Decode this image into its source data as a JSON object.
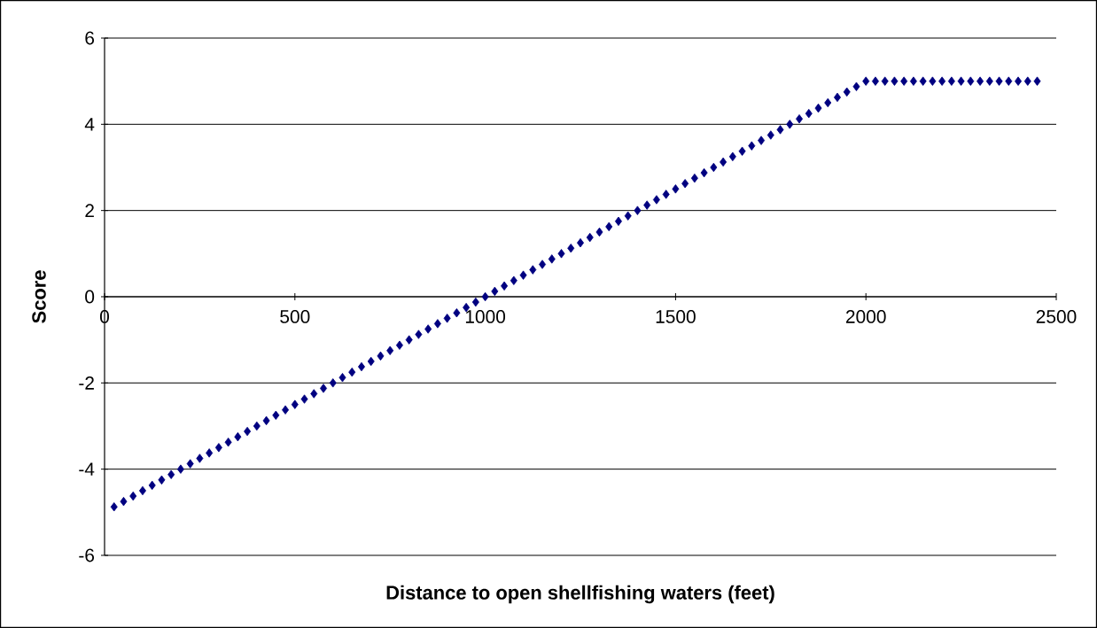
{
  "chart_data": {
    "type": "scatter",
    "xlabel": "Distance to open shellfishing waters (feet)",
    "ylabel": "Score",
    "x": [
      25,
      50,
      75,
      100,
      125,
      150,
      175,
      200,
      225,
      250,
      275,
      300,
      325,
      350,
      375,
      400,
      425,
      450,
      475,
      500,
      525,
      550,
      575,
      600,
      625,
      650,
      675,
      700,
      725,
      750,
      775,
      800,
      825,
      850,
      875,
      900,
      925,
      950,
      975,
      1000,
      1025,
      1050,
      1075,
      1100,
      1125,
      1150,
      1175,
      1200,
      1225,
      1250,
      1275,
      1300,
      1325,
      1350,
      1375,
      1400,
      1425,
      1450,
      1475,
      1500,
      1525,
      1550,
      1575,
      1600,
      1625,
      1650,
      1675,
      1700,
      1725,
      1750,
      1775,
      1800,
      1825,
      1850,
      1875,
      1900,
      1925,
      1950,
      1975,
      2000,
      2025,
      2050,
      2075,
      2100,
      2125,
      2150,
      2175,
      2200,
      2225,
      2250,
      2275,
      2300,
      2325,
      2350,
      2375,
      2400,
      2425,
      2450
    ],
    "values": [
      -4.875,
      -4.75,
      -4.625,
      -4.5,
      -4.375,
      -4.25,
      -4.125,
      -4,
      -3.875,
      -3.75,
      -3.625,
      -3.5,
      -3.375,
      -3.25,
      -3.125,
      -3,
      -2.875,
      -2.75,
      -2.625,
      -2.5,
      -2.375,
      -2.25,
      -2.125,
      -2,
      -1.875,
      -1.75,
      -1.625,
      -1.5,
      -1.375,
      -1.25,
      -1.125,
      -1,
      -0.875,
      -0.75,
      -0.625,
      -0.5,
      -0.375,
      -0.25,
      -0.125,
      0,
      0.125,
      0.25,
      0.375,
      0.5,
      0.625,
      0.75,
      0.875,
      1,
      1.125,
      1.25,
      1.375,
      1.5,
      1.625,
      1.75,
      1.875,
      2,
      2.125,
      2.25,
      2.375,
      2.5,
      2.625,
      2.75,
      2.875,
      3,
      3.125,
      3.25,
      3.375,
      3.5,
      3.625,
      3.75,
      3.875,
      4,
      4.125,
      4.25,
      4.375,
      4.5,
      4.625,
      4.75,
      4.875,
      5,
      5,
      5,
      5,
      5,
      5,
      5,
      5,
      5,
      5,
      5,
      5,
      5,
      5,
      5,
      5,
      5,
      5,
      5
    ],
    "color": "#000080",
    "marker": "diamond",
    "grid": "y",
    "xlim": [
      0,
      2500
    ],
    "xticks": [
      0,
      500,
      1000,
      1500,
      2000,
      2500
    ],
    "ylim": [
      -6,
      6
    ],
    "yticks": [
      -6,
      -4,
      -2,
      0,
      2,
      4,
      6
    ]
  }
}
